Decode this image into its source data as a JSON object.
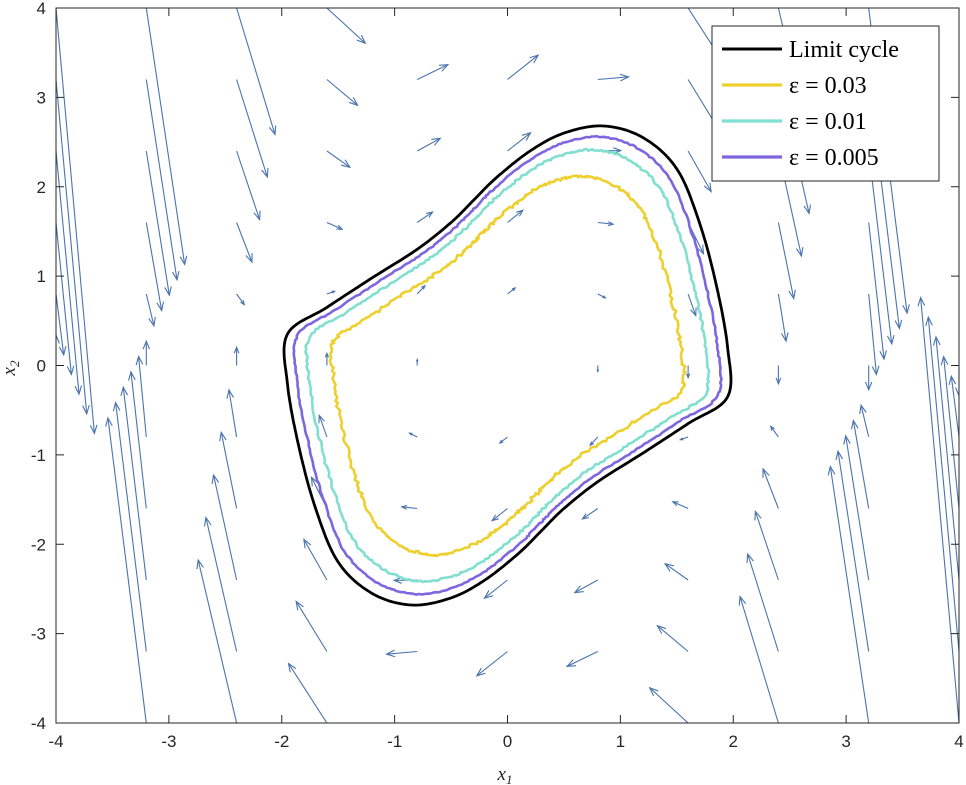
{
  "chart_data": {
    "type": "line",
    "title": "",
    "xlabel": "x",
    "xlabel_sub": "1",
    "ylabel": "x",
    "ylabel_sub": "2",
    "xlim": [
      -4,
      4
    ],
    "ylim": [
      -4,
      4
    ],
    "xticks": [
      "-4",
      "-3",
      "-2",
      "-1",
      "0",
      "1",
      "2",
      "3",
      "4"
    ],
    "yticks": [
      "-4",
      "-3",
      "-2",
      "-1",
      "0",
      "1",
      "2",
      "3",
      "4"
    ],
    "grid": false,
    "legend_position": "top-right",
    "series": [
      {
        "name": "Limit cycle",
        "color": "#000000",
        "scale": 1.0,
        "noise": 0
      },
      {
        "name": "ε = 0.03",
        "color": "#EDD02E",
        "scale": 0.79,
        "noise": 0.015
      },
      {
        "name": "ε = 0.01",
        "color": "#80DFCF",
        "scale": 0.9,
        "noise": 0.01
      },
      {
        "name": "ε = 0.005",
        "color": "#7D66DE",
        "scale": 0.955,
        "noise": 0.006
      }
    ],
    "limit_cycle_points": [
      [
        -1.95,
        0.35
      ],
      [
        -1.6,
        0.65
      ],
      [
        -1.2,
        0.98
      ],
      [
        -0.8,
        1.3
      ],
      [
        -0.5,
        1.6
      ],
      [
        -0.3,
        1.85
      ],
      [
        -0.1,
        2.1
      ],
      [
        0.2,
        2.4
      ],
      [
        0.5,
        2.6
      ],
      [
        0.85,
        2.68
      ],
      [
        1.2,
        2.55
      ],
      [
        1.5,
        2.2
      ],
      [
        1.7,
        1.6
      ],
      [
        1.85,
        0.9
      ],
      [
        1.95,
        0.2
      ],
      [
        1.95,
        -0.35
      ],
      [
        1.6,
        -0.65
      ],
      [
        1.2,
        -0.98
      ],
      [
        0.8,
        -1.3
      ],
      [
        0.5,
        -1.6
      ],
      [
        0.3,
        -1.85
      ],
      [
        0.1,
        -2.1
      ],
      [
        -0.2,
        -2.4
      ],
      [
        -0.5,
        -2.6
      ],
      [
        -0.85,
        -2.68
      ],
      [
        -1.2,
        -2.55
      ],
      [
        -1.5,
        -2.2
      ],
      [
        -1.7,
        -1.6
      ],
      [
        -1.85,
        -0.9
      ],
      [
        -1.95,
        -0.2
      ]
    ],
    "vector_field": {
      "color": "#4A74AE",
      "grid_x": [
        -4,
        -3.2,
        -2.4,
        -1.6,
        -0.8,
        0,
        0.8,
        1.6,
        2.4,
        3.2,
        4
      ],
      "grid_y": [
        -4,
        -3.2,
        -2.4,
        -1.6,
        -0.8,
        0,
        0.8,
        1.6,
        2.4,
        3.2,
        4
      ],
      "model": "van der Pol, mu = 1"
    }
  }
}
